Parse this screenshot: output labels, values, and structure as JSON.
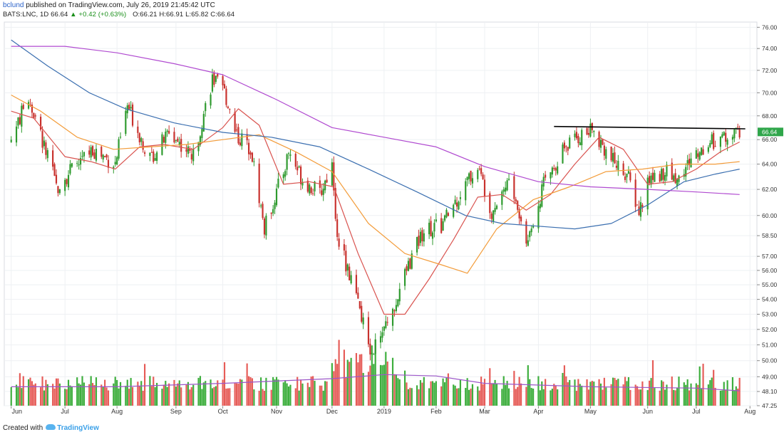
{
  "header": {
    "user": "bclund",
    "published_text": "published on TradingView.com, July 26, 2019 21:45:42 UTC",
    "symbol": "BATS:LNC, 1D",
    "last": "66.64",
    "change_arrow": "▲",
    "change": "+0.42 (+0.63%)",
    "open_label": "O:",
    "open": "66.21",
    "high_label": "H:",
    "high": "66.91",
    "low_label": "L:",
    "low": "65.82",
    "close_label": "C:",
    "close": "66.64"
  },
  "footer": {
    "created_with": "Created with",
    "brand": "TradingView"
  },
  "colors": {
    "up": "#2e9a2e",
    "down": "#c8312d",
    "vol_up": "#3dae3d",
    "vol_down": "#e65c58",
    "ma_red": "#d9534f",
    "ma_orange": "#f39c3a",
    "ma_blue": "#3b6fb0",
    "ma_purple": "#b04ad0",
    "vol_ma": "#9b57c8",
    "last_price_bg": "#2fa64a",
    "resistance": "#000000",
    "grid": "#eef0f3"
  },
  "chart_data": {
    "type": "candlestick",
    "title": "",
    "xlabel": "",
    "ylabel": "",
    "ylim": [
      47.25,
      76.5
    ],
    "y_scale": "log",
    "y_ticks": [
      "76.00",
      "74.00",
      "72.00",
      "70.00",
      "68.00",
      "66.00",
      "64.00",
      "62.00",
      "60.00",
      "58.50",
      "57.00",
      "56.00",
      "55.00",
      "54.00",
      "53.00",
      "52.00",
      "51.00",
      "50.00",
      "49.00",
      "48.10",
      "47.25"
    ],
    "x_ticks": [
      "Jun",
      "Jul",
      "Aug",
      "Sep",
      "Oct",
      "Nov",
      "Dec",
      "2019",
      "Feb",
      "Mar",
      "Apr",
      "May",
      "Jun",
      "Jul",
      "Aug"
    ],
    "last_price_label": "66.64",
    "grid": true,
    "legend": "none",
    "close_anchors": [
      {
        "date": "2018-06-01",
        "close": 66.0
      },
      {
        "date": "2018-06-11",
        "close": 69.6
      },
      {
        "date": "2018-06-20",
        "close": 65.4
      },
      {
        "date": "2018-06-27",
        "close": 62.2
      },
      {
        "date": "2018-07-05",
        "close": 63.4
      },
      {
        "date": "2018-07-18",
        "close": 65.2
      },
      {
        "date": "2018-07-31",
        "close": 64.0
      },
      {
        "date": "2018-08-07",
        "close": 68.8
      },
      {
        "date": "2018-08-20",
        "close": 64.4
      },
      {
        "date": "2018-08-31",
        "close": 66.6
      },
      {
        "date": "2018-09-14",
        "close": 64.6
      },
      {
        "date": "2018-09-25",
        "close": 71.2
      },
      {
        "date": "2018-10-02",
        "close": 70.0
      },
      {
        "date": "2018-10-10",
        "close": 66.2
      },
      {
        "date": "2018-10-17",
        "close": 65.4
      },
      {
        "date": "2018-10-25",
        "close": 59.0
      },
      {
        "date": "2018-11-05",
        "close": 63.4
      },
      {
        "date": "2018-11-08",
        "close": 65.0
      },
      {
        "date": "2018-11-16",
        "close": 62.8
      },
      {
        "date": "2018-11-26",
        "close": 61.6
      },
      {
        "date": "2018-12-03",
        "close": 64.0
      },
      {
        "date": "2018-12-05",
        "close": 59.2
      },
      {
        "date": "2018-12-14",
        "close": 55.2
      },
      {
        "date": "2018-12-24",
        "close": 51.0
      },
      {
        "date": "2018-12-27",
        "close": 50.8
      },
      {
        "date": "2019-01-04",
        "close": 52.4
      },
      {
        "date": "2019-01-18",
        "close": 57.0
      },
      {
        "date": "2019-01-25",
        "close": 59.0
      },
      {
        "date": "2019-02-04",
        "close": 59.2
      },
      {
        "date": "2019-02-19",
        "close": 62.6
      },
      {
        "date": "2019-02-25",
        "close": 63.8
      },
      {
        "date": "2019-03-05",
        "close": 60.4
      },
      {
        "date": "2019-03-15",
        "close": 62.8
      },
      {
        "date": "2019-03-25",
        "close": 58.0
      },
      {
        "date": "2019-04-04",
        "close": 62.4
      },
      {
        "date": "2019-04-15",
        "close": 65.2
      },
      {
        "date": "2019-04-26",
        "close": 66.4
      },
      {
        "date": "2019-05-03",
        "close": 66.8
      },
      {
        "date": "2019-05-13",
        "close": 64.4
      },
      {
        "date": "2019-05-22",
        "close": 63.2
      },
      {
        "date": "2019-05-29",
        "close": 60.2
      },
      {
        "date": "2019-06-04",
        "close": 62.8
      },
      {
        "date": "2019-06-12",
        "close": 63.4
      },
      {
        "date": "2019-06-21",
        "close": 62.8
      },
      {
        "date": "2019-06-28",
        "close": 64.4
      },
      {
        "date": "2019-07-09",
        "close": 65.8
      },
      {
        "date": "2019-07-26",
        "close": 66.64
      }
    ],
    "moving_averages": [
      {
        "color_key": "ma_red",
        "points": [
          {
            "date": "2018-06-01",
            "value": 68.4
          },
          {
            "date": "2018-06-14",
            "value": 67.8
          },
          {
            "date": "2018-07-02",
            "value": 64.6
          },
          {
            "date": "2018-07-17",
            "value": 64.2
          },
          {
            "date": "2018-07-31",
            "value": 63.6
          },
          {
            "date": "2018-08-14",
            "value": 65.4
          },
          {
            "date": "2018-08-28",
            "value": 65.6
          },
          {
            "date": "2018-09-14",
            "value": 65.2
          },
          {
            "date": "2018-10-01",
            "value": 67.0
          },
          {
            "date": "2018-10-10",
            "value": 68.6
          },
          {
            "date": "2018-10-22",
            "value": 67.2
          },
          {
            "date": "2018-11-05",
            "value": 62.4
          },
          {
            "date": "2018-11-20",
            "value": 62.6
          },
          {
            "date": "2018-12-04",
            "value": 62.2
          },
          {
            "date": "2018-12-18",
            "value": 57.2
          },
          {
            "date": "2019-01-02",
            "value": 53.0
          },
          {
            "date": "2019-01-14",
            "value": 53.0
          },
          {
            "date": "2019-01-28",
            "value": 55.4
          },
          {
            "date": "2019-02-11",
            "value": 58.2
          },
          {
            "date": "2019-02-25",
            "value": 61.4
          },
          {
            "date": "2019-03-11",
            "value": 61.6
          },
          {
            "date": "2019-03-25",
            "value": 60.4
          },
          {
            "date": "2019-04-08",
            "value": 61.6
          },
          {
            "date": "2019-04-22",
            "value": 64.0
          },
          {
            "date": "2019-05-06",
            "value": 66.2
          },
          {
            "date": "2019-05-20",
            "value": 65.2
          },
          {
            "date": "2019-06-03",
            "value": 62.4
          },
          {
            "date": "2019-06-17",
            "value": 62.6
          },
          {
            "date": "2019-07-01",
            "value": 63.6
          },
          {
            "date": "2019-07-15",
            "value": 65.0
          },
          {
            "date": "2019-07-26",
            "value": 65.8
          }
        ]
      },
      {
        "color_key": "ma_orange",
        "points": [
          {
            "date": "2018-06-01",
            "value": 69.8
          },
          {
            "date": "2018-06-18",
            "value": 68.4
          },
          {
            "date": "2018-07-09",
            "value": 66.2
          },
          {
            "date": "2018-07-30",
            "value": 65.2
          },
          {
            "date": "2018-08-20",
            "value": 65.4
          },
          {
            "date": "2018-09-10",
            "value": 65.6
          },
          {
            "date": "2018-10-01",
            "value": 66.0
          },
          {
            "date": "2018-10-22",
            "value": 66.4
          },
          {
            "date": "2018-11-12",
            "value": 65.0
          },
          {
            "date": "2018-12-03",
            "value": 63.4
          },
          {
            "date": "2018-12-24",
            "value": 59.4
          },
          {
            "date": "2019-01-14",
            "value": 57.2
          },
          {
            "date": "2019-02-04",
            "value": 56.4
          },
          {
            "date": "2019-02-19",
            "value": 55.8
          },
          {
            "date": "2019-03-08",
            "value": 59.0
          },
          {
            "date": "2019-03-29",
            "value": 61.2
          },
          {
            "date": "2019-04-19",
            "value": 62.2
          },
          {
            "date": "2019-05-10",
            "value": 63.4
          },
          {
            "date": "2019-05-31",
            "value": 63.6
          },
          {
            "date": "2019-06-21",
            "value": 64.0
          },
          {
            "date": "2019-07-12",
            "value": 64.0
          },
          {
            "date": "2019-07-26",
            "value": 64.2
          }
        ]
      },
      {
        "color_key": "ma_blue",
        "points": [
          {
            "date": "2018-06-01",
            "value": 74.8
          },
          {
            "date": "2018-06-22",
            "value": 72.4
          },
          {
            "date": "2018-07-16",
            "value": 70.0
          },
          {
            "date": "2018-08-06",
            "value": 68.6
          },
          {
            "date": "2018-09-03",
            "value": 67.4
          },
          {
            "date": "2018-10-01",
            "value": 66.6
          },
          {
            "date": "2018-10-29",
            "value": 66.2
          },
          {
            "date": "2018-11-26",
            "value": 65.4
          },
          {
            "date": "2018-12-24",
            "value": 63.6
          },
          {
            "date": "2019-01-21",
            "value": 61.8
          },
          {
            "date": "2019-02-18",
            "value": 60.0
          },
          {
            "date": "2019-03-11",
            "value": 59.4
          },
          {
            "date": "2019-04-01",
            "value": 59.2
          },
          {
            "date": "2019-04-22",
            "value": 59.0
          },
          {
            "date": "2019-05-13",
            "value": 59.4
          },
          {
            "date": "2019-06-03",
            "value": 60.8
          },
          {
            "date": "2019-06-24",
            "value": 62.6
          },
          {
            "date": "2019-07-12",
            "value": 63.2
          },
          {
            "date": "2019-07-26",
            "value": 63.6
          }
        ]
      },
      {
        "color_key": "ma_purple",
        "points": [
          {
            "date": "2018-06-01",
            "value": 74.2
          },
          {
            "date": "2018-07-02",
            "value": 74.2
          },
          {
            "date": "2018-08-01",
            "value": 73.6
          },
          {
            "date": "2018-09-03",
            "value": 72.6
          },
          {
            "date": "2018-10-01",
            "value": 71.6
          },
          {
            "date": "2018-11-01",
            "value": 69.4
          },
          {
            "date": "2018-12-03",
            "value": 67.0
          },
          {
            "date": "2019-01-02",
            "value": 66.2
          },
          {
            "date": "2019-02-01",
            "value": 65.4
          },
          {
            "date": "2019-03-01",
            "value": 63.8
          },
          {
            "date": "2019-04-01",
            "value": 62.6
          },
          {
            "date": "2019-05-01",
            "value": 62.2
          },
          {
            "date": "2019-06-03",
            "value": 62.0
          },
          {
            "date": "2019-07-01",
            "value": 61.8
          },
          {
            "date": "2019-07-26",
            "value": 61.6
          }
        ]
      }
    ],
    "resistance_line": {
      "from": {
        "date": "2019-04-10",
        "value": 67.1
      },
      "to": {
        "date": "2019-07-26",
        "value": 66.9
      }
    },
    "volume_ma": [
      {
        "date": "2018-06-01",
        "value": 0.28
      },
      {
        "date": "2018-08-01",
        "value": 0.28
      },
      {
        "date": "2018-10-01",
        "value": 0.33
      },
      {
        "date": "2018-12-03",
        "value": 0.4
      },
      {
        "date": "2019-01-02",
        "value": 0.46
      },
      {
        "date": "2019-02-01",
        "value": 0.44
      },
      {
        "date": "2019-03-01",
        "value": 0.33
      },
      {
        "date": "2019-05-01",
        "value": 0.28
      },
      {
        "date": "2019-07-01",
        "value": 0.26
      },
      {
        "date": "2019-07-26",
        "value": 0.22
      }
    ]
  }
}
